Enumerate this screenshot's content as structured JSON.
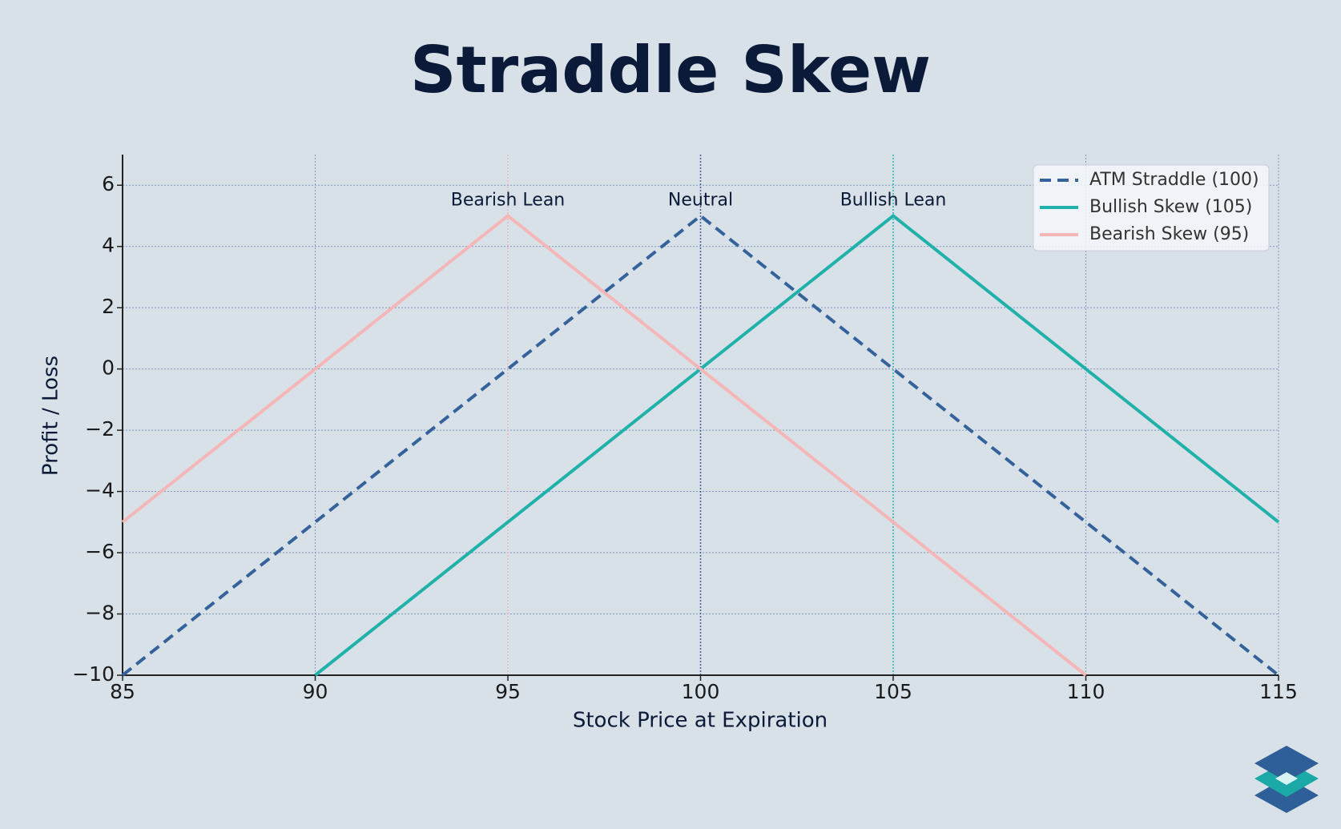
{
  "chart_data": {
    "type": "line",
    "title": "Straddle Skew",
    "xlabel": "Stock Price at Expiration",
    "ylabel": "Profit / Loss",
    "x": [
      85,
      90,
      95,
      100,
      105,
      110,
      115
    ],
    "series": [
      {
        "name": "ATM Straddle (100)",
        "color": "#34629a",
        "linestyle": "dashed",
        "values": [
          -10,
          -5,
          0,
          5,
          0,
          -5,
          -10
        ]
      },
      {
        "name": "Bullish Skew (105)",
        "color": "#20b2aa",
        "linestyle": "solid",
        "values": [
          null,
          -10,
          -5,
          0,
          5,
          0,
          -5
        ]
      },
      {
        "name": "Bearish Skew (95)",
        "color": "#f4b6b6",
        "linestyle": "solid",
        "values": [
          -5,
          0,
          5,
          0,
          -5,
          -10,
          null
        ]
      }
    ],
    "annotations": [
      {
        "x": 95,
        "y": 5.5,
        "label": "Bearish Lean",
        "color": "#f4b6b6"
      },
      {
        "x": 100,
        "y": 5.5,
        "label": "Neutral",
        "color": "#34629a"
      },
      {
        "x": 105,
        "y": 5.5,
        "label": "Bullish Lean",
        "color": "#20b2aa"
      }
    ],
    "xlim": [
      85,
      115
    ],
    "ylim": [
      -10,
      7
    ],
    "xticks": [
      85,
      90,
      95,
      100,
      105,
      110,
      115
    ],
    "yticks": [
      {
        "value": -10,
        "label": "−10"
      },
      {
        "value": -8,
        "label": "−8"
      },
      {
        "value": -6,
        "label": "−6"
      },
      {
        "value": -4,
        "label": "−4"
      },
      {
        "value": -2,
        "label": "−2"
      },
      0,
      2,
      4,
      6
    ],
    "grid": true,
    "legend": "upper right"
  }
}
